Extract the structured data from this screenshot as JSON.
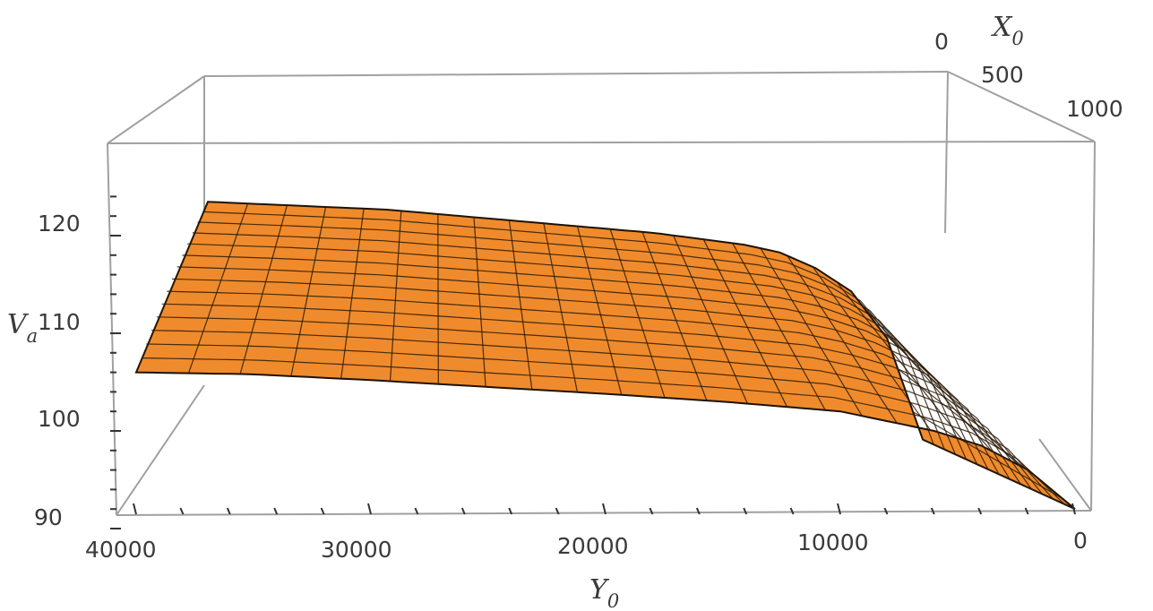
{
  "chart_data": {
    "type": "surface3d",
    "title": "",
    "zlabel": "V",
    "zlabel_sub": "a",
    "xlabel": "X",
    "xlabel_sub": "0",
    "ylabel": "Y",
    "ylabel_sub": "0",
    "x_ticks": [
      "0",
      "500",
      "1000"
    ],
    "y_ticks": [
      "40000",
      "30000",
      "20000",
      "10000",
      "0"
    ],
    "z_ticks": [
      "90",
      "100",
      "110",
      "120"
    ],
    "xlim": [
      0,
      1000
    ],
    "ylim": [
      0,
      40000
    ],
    "zlim": [
      90,
      127
    ],
    "surface_color": "#ef8b2c",
    "mesh_color": "#2a1a08",
    "box_color": "#a0a0a0",
    "sampled_surface": {
      "y": [
        0,
        2000,
        4000,
        6000,
        8000,
        10000,
        15000,
        20000,
        25000,
        30000,
        35000,
        40000
      ],
      "v_at_x0_min": [
        92,
        105,
        111,
        114,
        116,
        117,
        118.5,
        119.5,
        120.5,
        121.5,
        122,
        122.5
      ],
      "v_at_x0_max": [
        92,
        96,
        98.5,
        100,
        101,
        102,
        103,
        103.8,
        104.5,
        105.2,
        105.8,
        106
      ]
    }
  }
}
